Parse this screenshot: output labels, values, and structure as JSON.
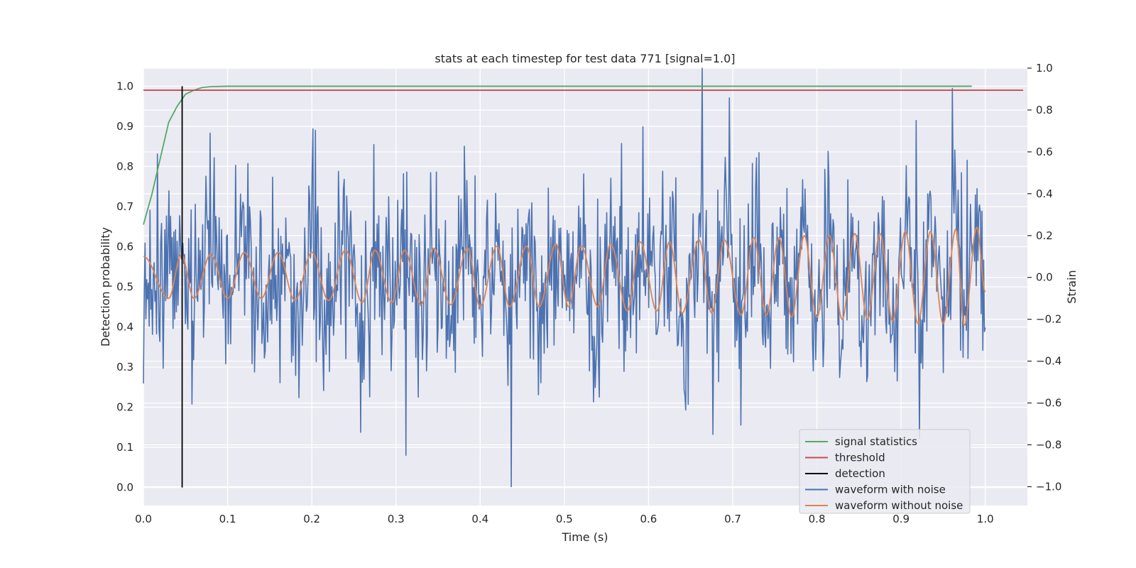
{
  "chart_data": {
    "type": "line",
    "title": "stats at each timestep for test data 771 [signal=1.0]",
    "xlabel": "Time (s)",
    "ylabel_left": "Detection probability",
    "ylabel_right": "Strain",
    "xlim": [
      0.0,
      1.05
    ],
    "ylim_left": [
      -0.045,
      1.045
    ],
    "ylim_right": [
      -1.09,
      1.0
    ],
    "x_ticks": [
      "0.0",
      "0.1",
      "0.2",
      "0.3",
      "0.4",
      "0.5",
      "0.6",
      "0.7",
      "0.8",
      "0.9",
      "1.0"
    ],
    "y_left_ticks": [
      "0.0",
      "0.1",
      "0.2",
      "0.3",
      "0.4",
      "0.5",
      "0.6",
      "0.7",
      "0.8",
      "0.9",
      "1.0"
    ],
    "y_right_ticks": [
      "−1.0",
      "−0.8",
      "−0.6",
      "−0.4",
      "−0.2",
      "0.0",
      "0.2",
      "0.4",
      "0.6",
      "0.8",
      "1.0"
    ],
    "grid": true,
    "legend_position": "lower-right",
    "series": [
      {
        "name": "signal statistics",
        "color": "#55a868",
        "axis": "left",
        "x": [
          0.0,
          0.01,
          0.02,
          0.03,
          0.04,
          0.05,
          0.06,
          0.07,
          0.08,
          0.1,
          0.15,
          0.2,
          0.3,
          0.4,
          0.5,
          0.6,
          0.7,
          0.8,
          0.9,
          0.984
        ],
        "y": [
          0.655,
          0.73,
          0.82,
          0.91,
          0.95,
          0.98,
          0.99,
          0.997,
          0.999,
          1.0,
          1.0,
          1.0,
          1.0,
          1.0,
          1.0,
          1.0,
          1.0,
          1.0,
          1.0,
          1.0
        ]
      },
      {
        "name": "threshold",
        "color": "#c44e52",
        "axis": "left",
        "x": [
          0.0,
          1.045
        ],
        "y": [
          0.99,
          0.99
        ]
      },
      {
        "name": "detection",
        "color": "#000000",
        "axis": "left",
        "x": [
          0.046,
          0.046
        ],
        "y": [
          0.0,
          1.0
        ]
      },
      {
        "name": "waveform with noise",
        "color": "#4c72b0",
        "axis": "right",
        "x_start": 0.0,
        "x_end": 1.0,
        "n_points": 1024,
        "noise_std": 0.22,
        "notable_points": [
          {
            "x": 0.017,
            "y": 0.59
          },
          {
            "x": 0.0795,
            "y": 0.69
          },
          {
            "x": 0.2015,
            "y": 0.71
          },
          {
            "x": 0.258,
            "y": -0.74
          },
          {
            "x": 0.3115,
            "y": -0.85
          },
          {
            "x": 0.437,
            "y": -1.0
          },
          {
            "x": 0.5675,
            "y": 0.64
          },
          {
            "x": 0.593,
            "y": 0.72
          },
          {
            "x": 0.664,
            "y": 1.0
          },
          {
            "x": 0.6765,
            "y": -0.75
          },
          {
            "x": 0.9175,
            "y": 0.75
          },
          {
            "x": 0.922,
            "y": -0.77
          },
          {
            "x": 0.9785,
            "y": 0.56
          }
        ]
      },
      {
        "name": "waveform without noise",
        "color": "#dd8452",
        "axis": "right",
        "x_start": 0.0,
        "x_end": 1.0,
        "n_points": 1024,
        "peaks": [
          {
            "x": 0.0,
            "y": 0.1
          },
          {
            "x": 0.03,
            "y": -0.1
          },
          {
            "x": 0.045,
            "y": 0.11
          },
          {
            "x": 0.06,
            "y": -0.1
          },
          {
            "x": 0.08,
            "y": 0.11
          },
          {
            "x": 0.1,
            "y": -0.1
          },
          {
            "x": 0.12,
            "y": 0.12
          },
          {
            "x": 0.14,
            "y": -0.1
          },
          {
            "x": 0.16,
            "y": 0.12
          },
          {
            "x": 0.18,
            "y": -0.11
          },
          {
            "x": 0.2,
            "y": 0.12
          },
          {
            "x": 0.22,
            "y": -0.11
          },
          {
            "x": 0.24,
            "y": 0.13
          },
          {
            "x": 0.26,
            "y": -0.12
          },
          {
            "x": 0.275,
            "y": 0.13
          },
          {
            "x": 0.295,
            "y": -0.12
          },
          {
            "x": 0.31,
            "y": 0.13
          },
          {
            "x": 0.33,
            "y": -0.13
          },
          {
            "x": 0.345,
            "y": 0.14
          },
          {
            "x": 0.365,
            "y": -0.13
          },
          {
            "x": 0.385,
            "y": 0.14
          },
          {
            "x": 0.4,
            "y": -0.14
          },
          {
            "x": 0.42,
            "y": 0.15
          },
          {
            "x": 0.435,
            "y": -0.14
          },
          {
            "x": 0.455,
            "y": 0.15
          },
          {
            "x": 0.47,
            "y": -0.14
          },
          {
            "x": 0.49,
            "y": 0.16
          },
          {
            "x": 0.505,
            "y": -0.14
          },
          {
            "x": 0.52,
            "y": 0.15
          },
          {
            "x": 0.54,
            "y": -0.14
          },
          {
            "x": 0.555,
            "y": 0.16
          },
          {
            "x": 0.575,
            "y": -0.16
          },
          {
            "x": 0.59,
            "y": 0.17
          },
          {
            "x": 0.61,
            "y": -0.16
          },
          {
            "x": 0.625,
            "y": 0.17
          },
          {
            "x": 0.64,
            "y": -0.17
          },
          {
            "x": 0.66,
            "y": 0.18
          },
          {
            "x": 0.675,
            "y": -0.17
          },
          {
            "x": 0.69,
            "y": 0.18
          },
          {
            "x": 0.71,
            "y": -0.18
          },
          {
            "x": 0.725,
            "y": 0.19
          },
          {
            "x": 0.74,
            "y": -0.18
          },
          {
            "x": 0.755,
            "y": 0.19
          },
          {
            "x": 0.77,
            "y": -0.19
          },
          {
            "x": 0.785,
            "y": 0.2
          },
          {
            "x": 0.8,
            "y": -0.19
          },
          {
            "x": 0.815,
            "y": 0.2
          },
          {
            "x": 0.83,
            "y": -0.2
          },
          {
            "x": 0.845,
            "y": 0.21
          },
          {
            "x": 0.86,
            "y": -0.2
          },
          {
            "x": 0.875,
            "y": 0.21
          },
          {
            "x": 0.89,
            "y": -0.21
          },
          {
            "x": 0.905,
            "y": 0.22
          },
          {
            "x": 0.92,
            "y": -0.22
          },
          {
            "x": 0.935,
            "y": 0.22
          },
          {
            "x": 0.95,
            "y": -0.22
          },
          {
            "x": 0.965,
            "y": 0.23
          },
          {
            "x": 0.975,
            "y": -0.23
          },
          {
            "x": 0.99,
            "y": 0.24
          },
          {
            "x": 1.0,
            "y": -0.07
          }
        ]
      }
    ]
  }
}
